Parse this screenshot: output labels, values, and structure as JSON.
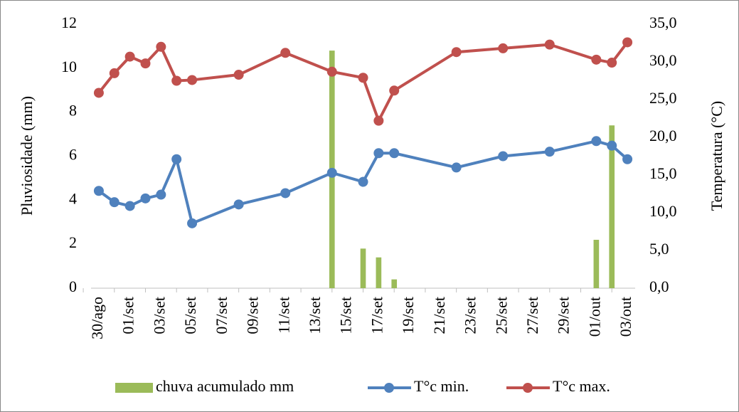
{
  "chart_data": {
    "type": "combo",
    "xlim": [
      -0.5,
      34.5
    ],
    "xticks": [
      {
        "value": 0,
        "label": "30/ago"
      },
      {
        "value": 2,
        "label": "01/set"
      },
      {
        "value": 4,
        "label": "03/set"
      },
      {
        "value": 6,
        "label": "05/set"
      },
      {
        "value": 8,
        "label": "07/set"
      },
      {
        "value": 10,
        "label": "09/set"
      },
      {
        "value": 12,
        "label": "11/set"
      },
      {
        "value": 14,
        "label": "13/set"
      },
      {
        "value": 16,
        "label": "15/set"
      },
      {
        "value": 18,
        "label": "17/set"
      },
      {
        "value": 20,
        "label": "19/set"
      },
      {
        "value": 22,
        "label": "21/set"
      },
      {
        "value": 24,
        "label": "23/set"
      },
      {
        "value": 26,
        "label": "25/set"
      },
      {
        "value": 28,
        "label": "27/set"
      },
      {
        "value": 30,
        "label": "29/set"
      },
      {
        "value": 32,
        "label": "01/out"
      },
      {
        "value": 34,
        "label": "03/out"
      }
    ],
    "ylabel": "Pluviosidade (mm)",
    "ylim": [
      0,
      12
    ],
    "yticks": [
      0,
      2,
      4,
      6,
      8,
      10,
      12
    ],
    "y2label": "Temperatura (°C)",
    "y2lim": [
      0,
      35
    ],
    "y2ticks": [
      {
        "value": 0,
        "label": "0,0"
      },
      {
        "value": 5,
        "label": "5,0"
      },
      {
        "value": 10,
        "label": "10,0"
      },
      {
        "value": 15,
        "label": "15,0"
      },
      {
        "value": 20,
        "label": "20,0"
      },
      {
        "value": 25,
        "label": "25,0"
      },
      {
        "value": 30,
        "label": "30,0"
      },
      {
        "value": 35,
        "label": "35,0"
      }
    ],
    "series": [
      {
        "name": "chuva acumulado mm",
        "type": "bar",
        "color": "#9bbb59",
        "x": [
          15,
          17,
          18,
          19,
          32,
          33
        ],
        "values": [
          10.8,
          1.8,
          1.4,
          0.4,
          2.2,
          7.4
        ]
      },
      {
        "name": "T°c min.",
        "type": "line",
        "axis": "y2",
        "color": "#4f81bd",
        "x": [
          0,
          1,
          2,
          3,
          4,
          5,
          6,
          9,
          12,
          15,
          17,
          18,
          19,
          23,
          26,
          29,
          32,
          33,
          34
        ],
        "values": [
          12.9,
          11.4,
          10.9,
          11.9,
          12.4,
          17.1,
          8.6,
          11.1,
          12.6,
          15.3,
          14.1,
          17.9,
          17.9,
          16.0,
          17.5,
          18.1,
          19.5,
          18.9,
          17.1
        ]
      },
      {
        "name": "T°c max.",
        "type": "line",
        "axis": "y2",
        "color": "#c0504d",
        "x": [
          0,
          1,
          2,
          3,
          4,
          5,
          6,
          9,
          12,
          15,
          17,
          18,
          19,
          23,
          26,
          29,
          32,
          33,
          34
        ],
        "values": [
          25.9,
          28.5,
          30.7,
          29.8,
          32.0,
          27.5,
          27.6,
          28.3,
          31.2,
          28.7,
          27.9,
          22.2,
          26.2,
          31.3,
          31.8,
          32.3,
          30.3,
          29.9,
          32.6
        ]
      }
    ]
  }
}
